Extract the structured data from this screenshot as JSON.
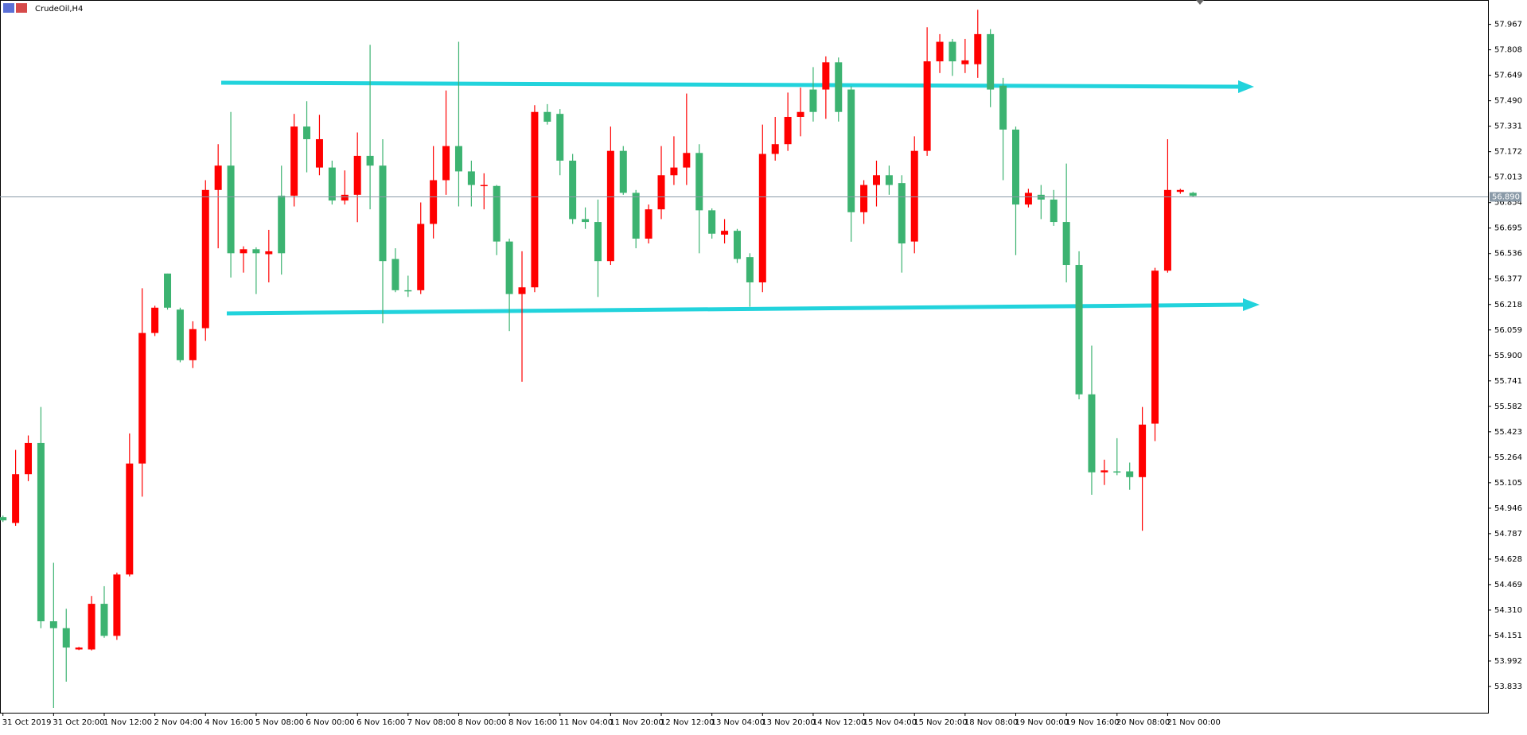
{
  "chart_data": {
    "type": "candlestick",
    "title": "CrudeOil,H4",
    "categories": [
      "31 Oct 2019",
      null,
      null,
      null,
      "31 Oct 20:00",
      null,
      null,
      null,
      "1 Nov 12:00",
      null,
      null,
      null,
      "2 Nov 04:00",
      null,
      null,
      null,
      "4 Nov 16:00",
      null,
      null,
      null,
      "5 Nov 08:00",
      null,
      null,
      null,
      "6 Nov 00:00",
      null,
      null,
      null,
      "6 Nov 16:00",
      null,
      null,
      null,
      "7 Nov 08:00",
      null,
      null,
      null,
      "8 Nov 00:00",
      null,
      null,
      null,
      "8 Nov 16:00",
      null,
      null,
      null,
      "11 Nov 04:00",
      null,
      null,
      null,
      "11 Nov 20:00",
      null,
      null,
      null,
      "12 Nov 12:00",
      null,
      null,
      null,
      "13 Nov 04:00",
      null,
      null,
      null,
      "13 Nov 20:00",
      null,
      null,
      null,
      "14 Nov 12:00",
      null,
      null,
      null,
      "15 Nov 04:00",
      null,
      null,
      null,
      "15 Nov 20:00",
      null,
      null,
      null,
      "18 Nov 08:00",
      null,
      null,
      null,
      "19 Nov 00:00",
      null,
      null,
      null,
      "19 Nov 16:00",
      null,
      null,
      null,
      "20 Nov 08:00",
      null,
      null,
      null,
      "21 Nov 00:00",
      null,
      null
    ],
    "open": [
      54.89,
      54.854,
      55.158,
      55.353,
      54.24,
      54.197,
      54.064,
      54.064,
      54.349,
      54.149,
      54.532,
      55.225,
      56.04,
      56.411,
      56.186,
      55.87,
      56.07,
      56.933,
      57.085,
      56.538,
      56.563,
      56.532,
      56.897,
      56.897,
      57.329,
      57.073,
      57.073,
      56.867,
      56.903,
      57.146,
      57.085,
      56.502,
      56.307,
      56.307,
      56.721,
      56.994,
      57.207,
      57.049,
      56.958,
      56.958,
      56.611,
      56.283,
      56.325,
      57.42,
      57.408,
      57.116,
      56.751,
      56.733,
      56.489,
      57.177,
      56.915,
      56.629,
      56.812,
      57.025,
      57.073,
      57.164,
      56.806,
      56.654,
      56.678,
      56.514,
      56.356,
      57.158,
      57.219,
      57.389,
      57.56,
      57.56,
      57.73,
      57.56,
      56.794,
      56.964,
      57.025,
      56.976,
      56.611,
      57.177,
      57.736,
      57.858,
      57.718,
      57.718,
      57.906,
      57.584,
      57.31,
      56.842,
      56.903,
      56.873,
      56.733,
      56.465,
      55.657,
      55.17,
      55.176,
      55.176,
      55.14,
      55.474,
      56.429,
      56.921,
      56.915
    ],
    "high": [
      54.9,
      55.31,
      55.4,
      55.578,
      54.605,
      54.318,
      54.08,
      54.398,
      54.459,
      54.544,
      55.413,
      56.319,
      56.21,
      56.411,
      56.198,
      56.113,
      56.994,
      57.219,
      57.42,
      56.581,
      56.575,
      56.684,
      57.085,
      57.408,
      57.487,
      57.402,
      57.116,
      57.055,
      57.292,
      57.839,
      57.25,
      56.569,
      56.398,
      56.855,
      57.207,
      57.554,
      57.858,
      57.116,
      57.037,
      56.964,
      56.629,
      56.55,
      57.462,
      57.469,
      57.438,
      57.158,
      56.824,
      56.873,
      57.329,
      57.207,
      56.933,
      56.842,
      57.207,
      57.268,
      57.535,
      57.219,
      56.818,
      56.751,
      56.69,
      56.538,
      57.341,
      57.389,
      57.541,
      57.572,
      57.7,
      57.767,
      57.76,
      57.58,
      56.994,
      57.116,
      57.085,
      57.025,
      57.268,
      57.949,
      57.906,
      57.876,
      57.876,
      58.058,
      57.937,
      57.633,
      57.329,
      56.94,
      56.964,
      56.933,
      57.098,
      56.55,
      55.961,
      55.249,
      55.383,
      55.231,
      55.578,
      56.447,
      57.25,
      56.94,
      56.921
    ],
    "low": [
      54.86,
      54.836,
      55.115,
      54.197,
      53.699,
      53.863,
      54.06,
      54.058,
      54.137,
      54.124,
      54.52,
      55.018,
      56.021,
      56.186,
      55.857,
      55.821,
      55.991,
      56.569,
      56.386,
      56.417,
      56.283,
      56.356,
      56.404,
      56.83,
      57.043,
      57.025,
      56.842,
      56.842,
      56.732,
      56.812,
      56.101,
      56.295,
      56.265,
      56.283,
      56.63,
      56.903,
      56.83,
      56.83,
      56.812,
      56.526,
      56.052,
      55.736,
      56.295,
      57.341,
      57.025,
      56.721,
      56.69,
      56.265,
      56.465,
      56.903,
      56.569,
      56.599,
      56.751,
      56.964,
      56.964,
      56.538,
      56.629,
      56.599,
      56.477,
      56.204,
      56.295,
      57.116,
      57.177,
      57.268,
      57.36,
      57.377,
      57.36,
      56.61,
      56.721,
      56.83,
      56.903,
      56.417,
      56.538,
      57.146,
      57.663,
      57.645,
      57.663,
      57.633,
      57.45,
      56.994,
      56.526,
      56.824,
      56.751,
      56.709,
      56.356,
      55.626,
      55.03,
      55.091,
      55.152,
      55.061,
      54.805,
      55.365,
      56.417,
      56.909,
      56.89
    ],
    "close": [
      54.87,
      55.158,
      55.353,
      54.24,
      54.197,
      54.076,
      54.076,
      54.349,
      54.149,
      54.532,
      55.225,
      56.04,
      56.198,
      56.198,
      55.87,
      56.064,
      56.933,
      57.085,
      56.538,
      56.563,
      56.538,
      56.55,
      56.538,
      57.329,
      57.25,
      57.25,
      56.867,
      56.903,
      57.146,
      57.085,
      56.489,
      56.307,
      56.301,
      56.721,
      56.994,
      57.207,
      57.049,
      56.964,
      56.964,
      56.611,
      56.283,
      56.325,
      57.42,
      57.359,
      57.116,
      56.751,
      56.733,
      56.489,
      57.177,
      56.915,
      56.629,
      56.812,
      57.025,
      57.073,
      57.164,
      56.806,
      56.66,
      56.678,
      56.502,
      56.356,
      57.158,
      57.219,
      57.389,
      57.42,
      57.42,
      57.73,
      57.42,
      56.794,
      56.964,
      57.025,
      56.964,
      56.599,
      57.177,
      57.736,
      57.858,
      57.736,
      57.742,
      57.906,
      57.56,
      57.31,
      56.842,
      56.915,
      56.873,
      56.733,
      56.465,
      55.657,
      55.17,
      55.182,
      55.17,
      55.14,
      55.468,
      56.429,
      56.933,
      56.933,
      56.896
    ],
    "up_color": "#ff0000",
    "down_color": "#3cb371",
    "ylim": [
      53.669,
      58.119
    ],
    "yticks": [
      {
        "value": 57.967,
        "label": "57.967"
      },
      {
        "value": 57.808,
        "label": "57.808"
      },
      {
        "value": 57.649,
        "label": "57.649"
      },
      {
        "value": 57.49,
        "label": "57.490"
      },
      {
        "value": 57.331,
        "label": "57.331"
      },
      {
        "value": 57.172,
        "label": "57.172"
      },
      {
        "value": 57.013,
        "label": "57.013"
      },
      {
        "value": 56.854,
        "label": "56.854"
      },
      {
        "value": 56.695,
        "label": "56.695"
      },
      {
        "value": 56.536,
        "label": "56.536"
      },
      {
        "value": 56.377,
        "label": "56.377"
      },
      {
        "value": 56.218,
        "label": "56.218"
      },
      {
        "value": 56.059,
        "label": "56.059"
      },
      {
        "value": 55.9,
        "label": "55.900"
      },
      {
        "value": 55.741,
        "label": "55.741"
      },
      {
        "value": 55.582,
        "label": "55.582"
      },
      {
        "value": 55.423,
        "label": "55.423"
      },
      {
        "value": 55.264,
        "label": "55.264"
      },
      {
        "value": 55.105,
        "label": "55.105"
      },
      {
        "value": 54.946,
        "label": "54.946"
      },
      {
        "value": 54.787,
        "label": "54.787"
      },
      {
        "value": 54.628,
        "label": "54.628"
      },
      {
        "value": 54.469,
        "label": "54.469"
      },
      {
        "value": 54.31,
        "label": "54.310"
      },
      {
        "value": 54.151,
        "label": "54.151"
      },
      {
        "value": 53.992,
        "label": "53.992"
      },
      {
        "value": 53.833,
        "label": "53.833"
      }
    ],
    "current_price": {
      "value": 56.89,
      "label": "56.890"
    }
  }
}
